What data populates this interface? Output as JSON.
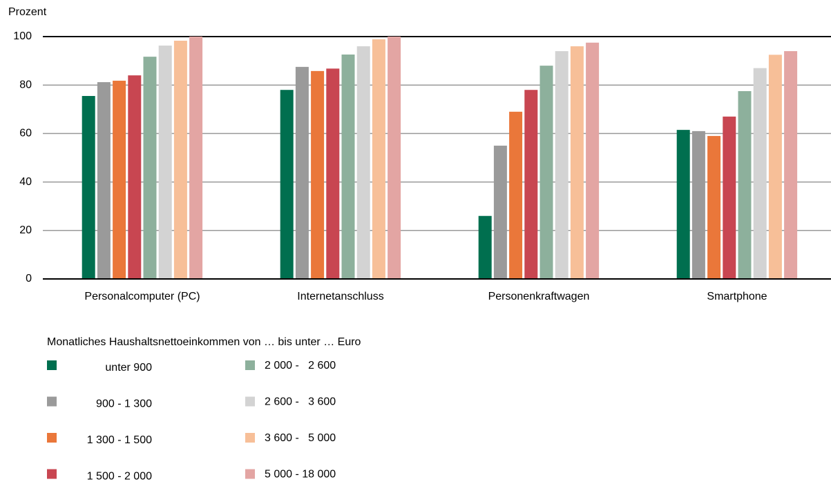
{
  "chart_data": {
    "type": "bar",
    "y_label": "Prozent",
    "categories": [
      "Personalcomputer (PC)",
      "Internetanschluss",
      "Personenkraftwagen",
      "Smartphone"
    ],
    "legend_title": "Monatliches Haushaltsnettoeinkommen von … bis unter … Euro",
    "series": [
      {
        "name": "unter 900",
        "color": "#006f4f",
        "values": [
          75.5,
          78,
          26,
          61.5
        ]
      },
      {
        "name": "900 - 1 300",
        "color": "#9a9a9a",
        "values": [
          81.2,
          87.5,
          55,
          61
        ]
      },
      {
        "name": "1 300 - 1 500",
        "color": "#ea773a",
        "values": [
          81.8,
          85.8,
          69,
          59
        ]
      },
      {
        "name": "1 500 - 2 000",
        "color": "#c84651",
        "values": [
          84,
          86.8,
          78,
          67
        ]
      },
      {
        "name": "2 000 -   2 600",
        "color": "#8db09c",
        "values": [
          91.7,
          92.6,
          88,
          77.5
        ]
      },
      {
        "name": "2 600 -   3 600",
        "color": "#d3d3d3",
        "values": [
          96.3,
          96,
          94,
          87
        ]
      },
      {
        "name": "3 600 -   5 000",
        "color": "#f7bf98",
        "values": [
          98.3,
          98.9,
          96,
          92.5
        ]
      },
      {
        "name": "5 000 - 18 000",
        "color": "#e3a5a3",
        "values": [
          100,
          100,
          97.5,
          94
        ]
      }
    ],
    "ylim": [
      0,
      100
    ],
    "yticks": [
      0,
      20,
      40,
      60,
      80,
      100
    ],
    "grid": true
  }
}
